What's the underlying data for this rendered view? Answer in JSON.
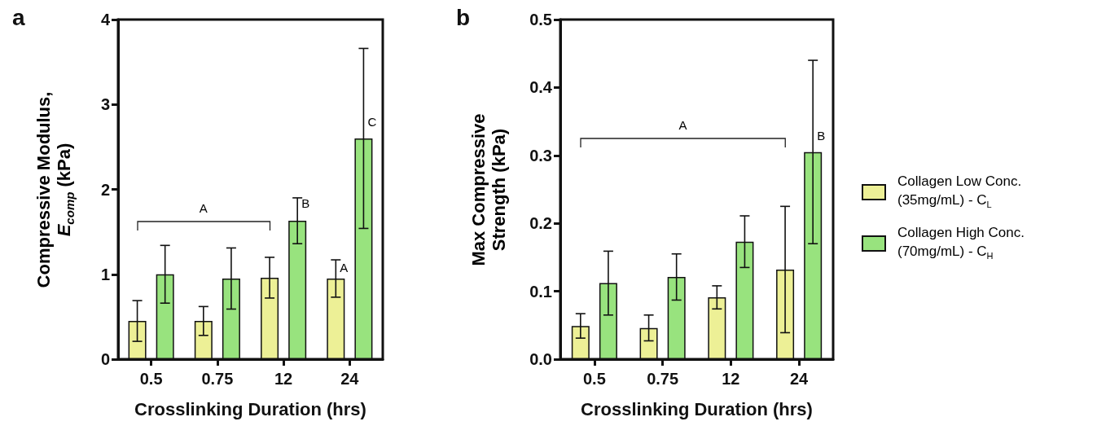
{
  "chart_data": [
    {
      "type": "bar",
      "title": "a",
      "xlabel": "Crosslinking Duration (hrs)",
      "ylabel": "Compressive Modulus, E$_{comp}$ (kPa)",
      "categories": [
        "0.5",
        "0.75",
        "12",
        "24"
      ],
      "series": [
        {
          "name": "Collagen Low Conc. (35mg/mL) - C$_{L}$",
          "color": "#edf096",
          "values": [
            0.45,
            0.45,
            0.96,
            0.95
          ],
          "errors": [
            0.24,
            0.17,
            0.24,
            0.22
          ]
        },
        {
          "name": "Collagen High Conc. (70mg/mL) - C$_{H}$",
          "color": "#98e37e",
          "values": [
            1.0,
            0.95,
            1.63,
            2.6
          ],
          "errors": [
            0.34,
            0.36,
            0.27,
            1.06
          ]
        }
      ],
      "ylim": [
        0,
        4
      ],
      "yticks": [
        0,
        1,
        2,
        3,
        4
      ],
      "grid": false,
      "legend": "right",
      "annotations": [
        "A",
        "B",
        "C",
        "A"
      ]
    },
    {
      "type": "bar",
      "title": "b",
      "xlabel": "Crosslinking Duration (hrs)",
      "ylabel": "Max Compressive Strength (kPa)",
      "categories": [
        "0.5",
        "0.75",
        "12",
        "24"
      ],
      "series": [
        {
          "name": "Collagen Low Conc. (35mg/mL) - C$_{L}$",
          "color": "#edf096",
          "values": [
            0.049,
            0.046,
            0.091,
            0.132
          ],
          "errors": [
            0.018,
            0.019,
            0.017,
            0.093
          ]
        },
        {
          "name": "Collagen High Conc. (70mg/mL) - C$_{H}$",
          "color": "#98e37e",
          "values": [
            0.112,
            0.121,
            0.173,
            0.305
          ],
          "errors": [
            0.047,
            0.034,
            0.038,
            0.135
          ]
        }
      ],
      "ylim": [
        0,
        0.5
      ],
      "yticks": [
        {
          "value": 0,
          "label": "0.0"
        },
        0.1,
        0.2,
        0.3,
        0.4,
        0.5
      ],
      "grid": false,
      "legend": "right",
      "annotations": [
        "A",
        "B"
      ]
    }
  ]
}
